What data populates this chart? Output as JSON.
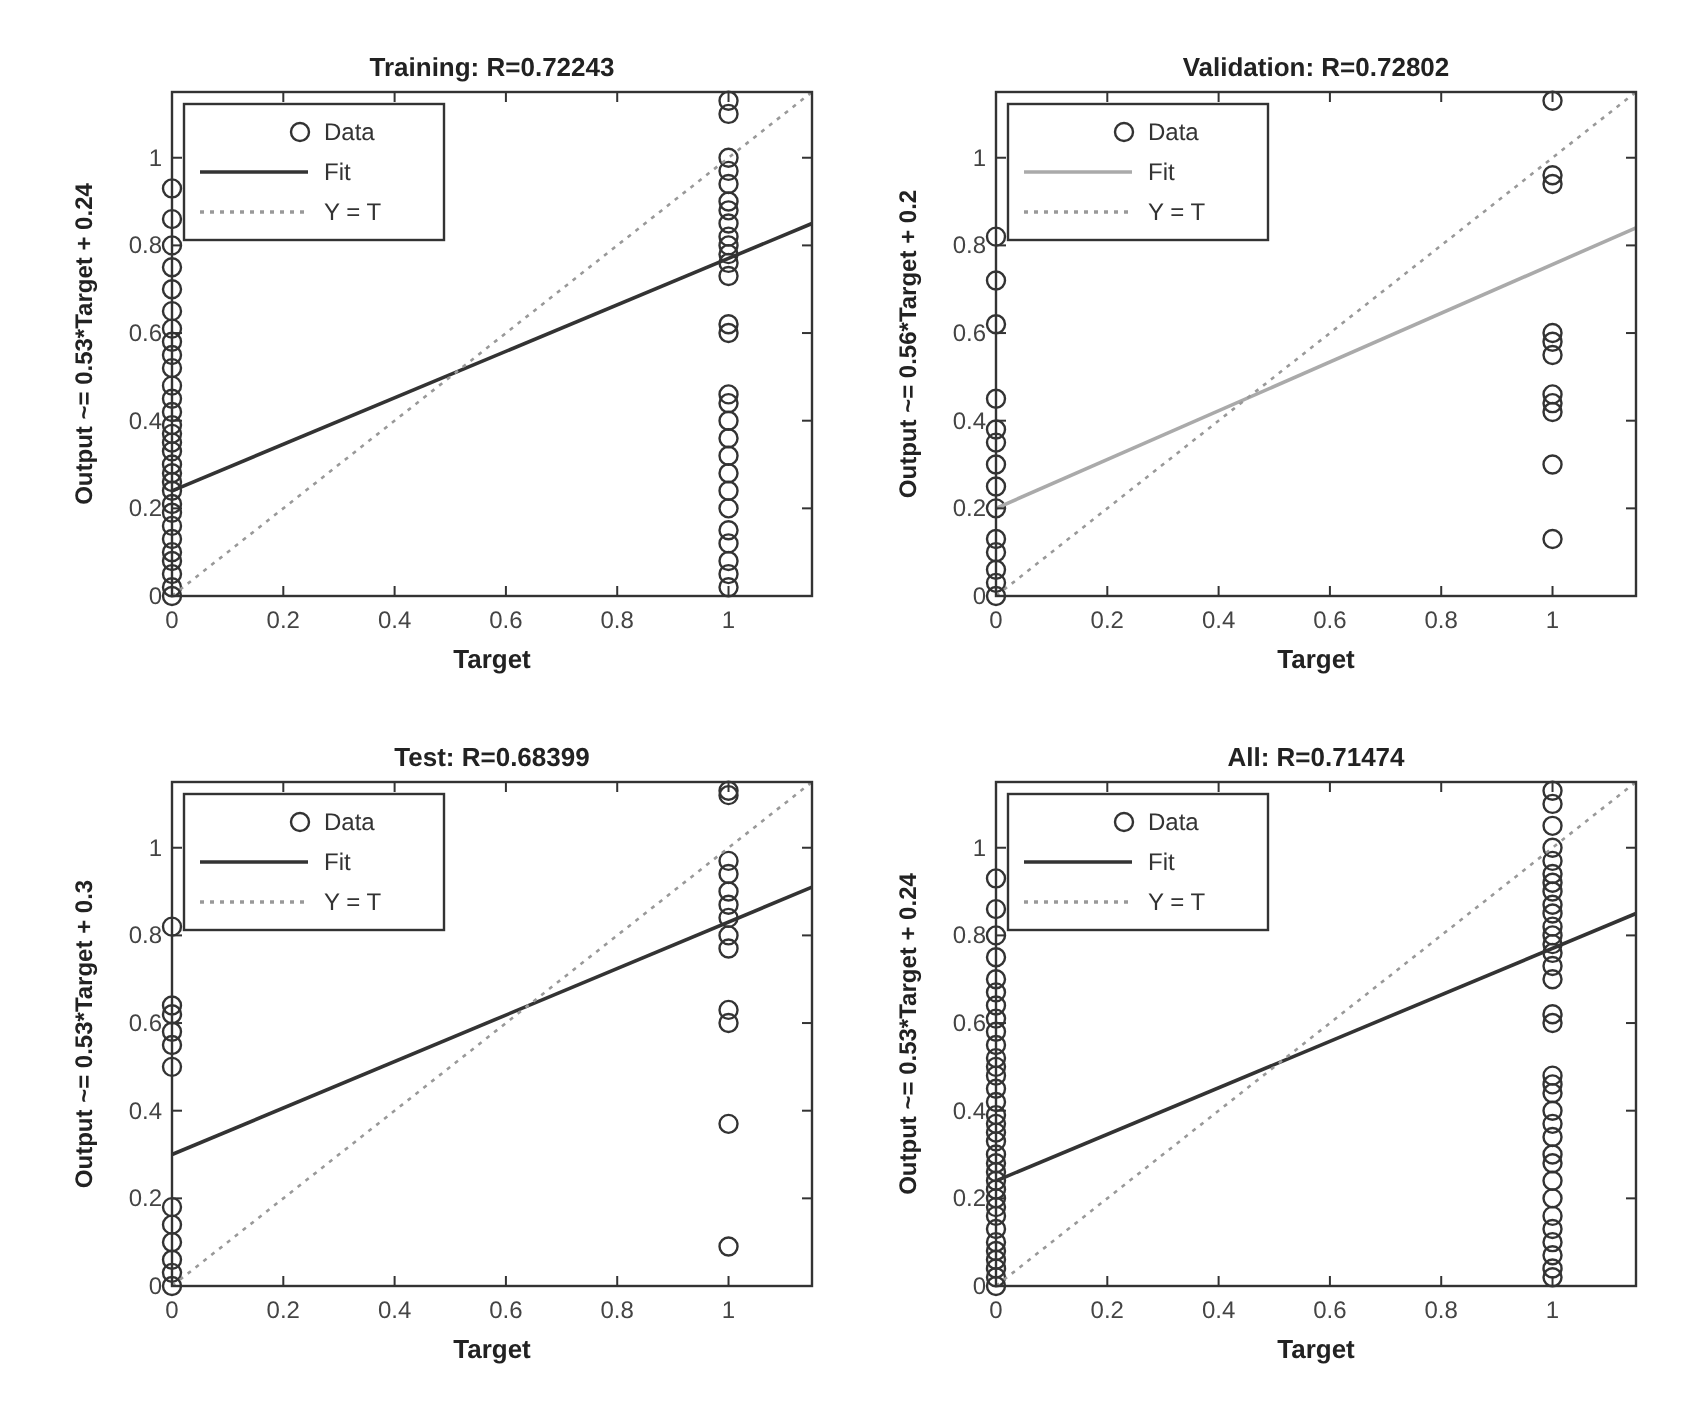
{
  "chart_data": [
    {
      "type": "scatter",
      "title": "Training: R=0.72243",
      "xlabel": "Target",
      "ylabel": "Output ~= 0.53*Target + 0.24",
      "xlim": [
        0,
        1.15
      ],
      "ylim": [
        0,
        1.15
      ],
      "xticks": [
        0,
        0.2,
        0.4,
        0.6,
        0.8,
        1
      ],
      "yticks": [
        0,
        0.2,
        0.4,
        0.6,
        0.8,
        1
      ],
      "grid": false,
      "legend": "top left",
      "series": [
        {
          "name": "Data",
          "type": "scatter",
          "marker": "circle",
          "color": "#333333",
          "x": [
            0,
            0,
            0,
            0,
            0,
            0,
            0,
            0,
            0,
            0,
            0,
            0,
            0,
            0,
            0,
            0,
            0,
            0,
            0,
            0,
            0,
            0,
            0,
            0,
            0,
            0,
            0,
            0,
            0,
            0,
            1,
            1,
            1,
            1,
            1,
            1,
            1,
            1,
            1,
            1,
            1,
            1,
            1,
            1,
            1,
            1,
            1,
            1,
            1,
            1,
            1,
            1,
            1,
            1,
            1,
            1,
            1,
            1
          ],
          "values": [
            0,
            0.02,
            0.05,
            0.08,
            0.1,
            0.13,
            0.16,
            0.19,
            0.21,
            0.24,
            0.26,
            0.28,
            0.3,
            0.33,
            0.35,
            0.37,
            0.39,
            0.42,
            0.45,
            0.48,
            0.52,
            0.55,
            0.58,
            0.61,
            0.65,
            0.7,
            0.75,
            0.8,
            0.86,
            0.93,
            1.13,
            1.1,
            1,
            0.97,
            0.94,
            0.9,
            0.88,
            0.85,
            0.82,
            0.8,
            0.78,
            0.76,
            0.73,
            0.62,
            0.6,
            0.46,
            0.44,
            0.4,
            0.36,
            0.32,
            0.28,
            0.24,
            0.2,
            0.15,
            0.12,
            0.08,
            0.05,
            0.02
          ]
        },
        {
          "name": "Fit",
          "type": "line",
          "marker": "none",
          "line_style": "solid",
          "color": "#333333",
          "x": [
            0,
            1.15
          ],
          "values": [
            0.24,
            0.85
          ]
        },
        {
          "name": "Y = T",
          "type": "line",
          "marker": "none",
          "line_style": "dotted",
          "color": "#999999",
          "x": [
            0,
            1.15
          ],
          "values": [
            0,
            1.15
          ]
        }
      ]
    },
    {
      "type": "scatter",
      "title": "Validation: R=0.72802",
      "xlabel": "Target",
      "ylabel": "Output ~= 0.56*Target + 0.2",
      "xlim": [
        0,
        1.15
      ],
      "ylim": [
        0,
        1.15
      ],
      "xticks": [
        0,
        0.2,
        0.4,
        0.6,
        0.8,
        1
      ],
      "yticks": [
        0,
        0.2,
        0.4,
        0.6,
        0.8,
        1
      ],
      "grid": false,
      "legend": "top left",
      "series": [
        {
          "name": "Data",
          "type": "scatter",
          "marker": "circle",
          "color": "#333333",
          "x": [
            0,
            0,
            0,
            0,
            0,
            0,
            0,
            0,
            0,
            0,
            0,
            0,
            0,
            0,
            1,
            1,
            1,
            1,
            1,
            1,
            1,
            1,
            1,
            1,
            1
          ],
          "values": [
            0,
            0.03,
            0.06,
            0.1,
            0.13,
            0.2,
            0.25,
            0.3,
            0.35,
            0.38,
            0.45,
            0.62,
            0.72,
            0.82,
            1.13,
            0.96,
            0.94,
            0.6,
            0.58,
            0.55,
            0.46,
            0.44,
            0.42,
            0.3,
            0.13
          ]
        },
        {
          "name": "Fit",
          "type": "line",
          "marker": "none",
          "line_style": "solid",
          "color": "#aaaaaa",
          "x": [
            0,
            1.15
          ],
          "values": [
            0.2,
            0.84
          ]
        },
        {
          "name": "Y = T",
          "type": "line",
          "marker": "none",
          "line_style": "dotted",
          "color": "#999999",
          "x": [
            0,
            1.15
          ],
          "values": [
            0,
            1.15
          ]
        }
      ]
    },
    {
      "type": "scatter",
      "title": "Test: R=0.68399",
      "xlabel": "Target",
      "ylabel": "Output ~= 0.53*Target + 0.3",
      "xlim": [
        0,
        1.15
      ],
      "ylim": [
        0,
        1.15
      ],
      "xticks": [
        0,
        0.2,
        0.4,
        0.6,
        0.8,
        1
      ],
      "yticks": [
        0,
        0.2,
        0.4,
        0.6,
        0.8,
        1
      ],
      "grid": false,
      "legend": "top left",
      "series": [
        {
          "name": "Data",
          "type": "scatter",
          "marker": "circle",
          "color": "#333333",
          "x": [
            0,
            0,
            0,
            0,
            0,
            0,
            0,
            0,
            0,
            0,
            0,
            0,
            1,
            1,
            1,
            1,
            1,
            1,
            1,
            1,
            1,
            1,
            1,
            1,
            1
          ],
          "values": [
            0,
            0.03,
            0.06,
            0.1,
            0.14,
            0.18,
            0.5,
            0.55,
            0.58,
            0.62,
            0.64,
            0.82,
            1.13,
            1.12,
            0.97,
            0.94,
            0.9,
            0.87,
            0.84,
            0.8,
            0.77,
            0.63,
            0.6,
            0.37,
            0.09
          ]
        },
        {
          "name": "Fit",
          "type": "line",
          "marker": "none",
          "line_style": "solid",
          "color": "#333333",
          "x": [
            0,
            1.15
          ],
          "values": [
            0.3,
            0.91
          ]
        },
        {
          "name": "Y = T",
          "type": "line",
          "marker": "none",
          "line_style": "dotted",
          "color": "#999999",
          "x": [
            0,
            1.15
          ],
          "values": [
            0,
            1.15
          ]
        }
      ]
    },
    {
      "type": "scatter",
      "title": "All: R=0.71474",
      "xlabel": "Target",
      "ylabel": "Output ~= 0.53*Target + 0.24",
      "xlim": [
        0,
        1.15
      ],
      "ylim": [
        0,
        1.15
      ],
      "xticks": [
        0,
        0.2,
        0.4,
        0.6,
        0.8,
        1
      ],
      "yticks": [
        0,
        0.2,
        0.4,
        0.6,
        0.8,
        1
      ],
      "grid": false,
      "legend": "top left",
      "series": [
        {
          "name": "Data",
          "type": "scatter",
          "marker": "circle",
          "color": "#333333",
          "x": [
            0,
            0,
            0,
            0,
            0,
            0,
            0,
            0,
            0,
            0,
            0,
            0,
            0,
            0,
            0,
            0,
            0,
            0,
            0,
            0,
            0,
            0,
            0,
            0,
            0,
            0,
            0,
            0,
            0,
            0,
            0,
            0,
            0,
            0,
            1,
            1,
            1,
            1,
            1,
            1,
            1,
            1,
            1,
            1,
            1,
            1,
            1,
            1,
            1,
            1,
            1,
            1,
            1,
            1,
            1,
            1,
            1,
            1,
            1,
            1,
            1,
            1,
            1,
            1,
            1,
            1,
            1,
            1
          ],
          "values": [
            0,
            0.02,
            0.04,
            0.06,
            0.08,
            0.1,
            0.13,
            0.16,
            0.18,
            0.2,
            0.22,
            0.24,
            0.26,
            0.28,
            0.3,
            0.33,
            0.35,
            0.37,
            0.39,
            0.42,
            0.45,
            0.48,
            0.5,
            0.52,
            0.55,
            0.58,
            0.61,
            0.64,
            0.67,
            0.7,
            0.75,
            0.8,
            0.86,
            0.93,
            1.13,
            1.1,
            1.05,
            1,
            0.97,
            0.94,
            0.92,
            0.9,
            0.87,
            0.85,
            0.82,
            0.8,
            0.78,
            0.76,
            0.73,
            0.7,
            0.62,
            0.6,
            0.48,
            0.46,
            0.44,
            0.4,
            0.37,
            0.34,
            0.3,
            0.28,
            0.24,
            0.2,
            0.16,
            0.13,
            0.1,
            0.07,
            0.04,
            0.02
          ]
        },
        {
          "name": "Fit",
          "type": "line",
          "marker": "none",
          "line_style": "solid",
          "color": "#333333",
          "x": [
            0,
            1.15
          ],
          "values": [
            0.24,
            0.85
          ]
        },
        {
          "name": "Y = T",
          "type": "line",
          "marker": "none",
          "line_style": "dotted",
          "color": "#999999",
          "x": [
            0,
            1.15
          ],
          "values": [
            0,
            1.15
          ]
        }
      ]
    }
  ]
}
